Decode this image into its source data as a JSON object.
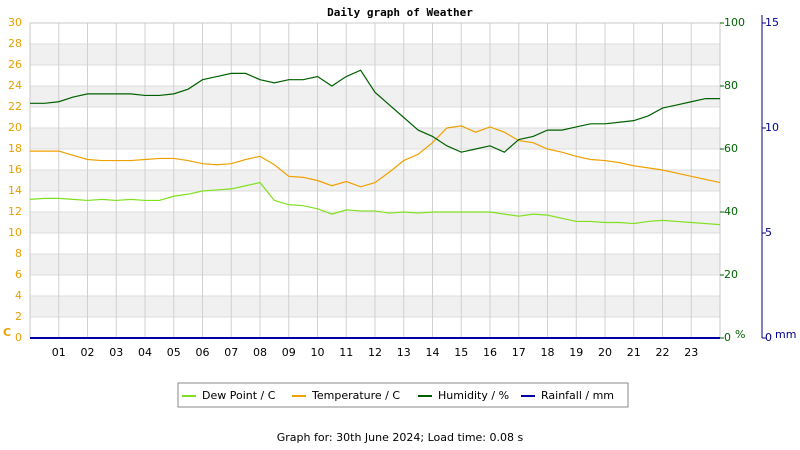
{
  "chart_data": {
    "type": "line",
    "title": "Daily graph of Weather",
    "footer": "Graph for: 30th June 2024; Load time: 0.08 s",
    "y_label": "C",
    "y2_label": "%",
    "y3_label": "mm",
    "x": [
      0,
      0.5,
      1,
      1.5,
      2,
      2.5,
      3,
      3.5,
      4,
      4.5,
      5,
      5.5,
      6,
      6.5,
      7,
      7.5,
      8,
      8.5,
      9,
      9.5,
      10,
      10.5,
      11,
      11.5,
      12,
      12.5,
      13,
      13.5,
      14,
      14.5,
      15,
      15.5,
      16,
      16.5,
      17,
      17.5,
      18,
      18.5,
      19,
      19.5,
      20,
      20.5,
      21,
      21.5,
      22,
      22.5,
      23,
      23.5,
      24
    ],
    "xlim": [
      0,
      24
    ],
    "xticks": [
      {
        "value": 1,
        "label": "01"
      },
      {
        "value": 2,
        "label": "02"
      },
      {
        "value": 3,
        "label": "03"
      },
      {
        "value": 4,
        "label": "04"
      },
      {
        "value": 5,
        "label": "05"
      },
      {
        "value": 6,
        "label": "06"
      },
      {
        "value": 7,
        "label": "07"
      },
      {
        "value": 8,
        "label": "08"
      },
      {
        "value": 9,
        "label": "09"
      },
      {
        "value": 10,
        "label": "10"
      },
      {
        "value": 11,
        "label": "11"
      },
      {
        "value": 12,
        "label": "12"
      },
      {
        "value": 13,
        "label": "13"
      },
      {
        "value": 14,
        "label": "14"
      },
      {
        "value": 15,
        "label": "15"
      },
      {
        "value": 16,
        "label": "16"
      },
      {
        "value": 17,
        "label": "17"
      },
      {
        "value": 18,
        "label": "18"
      },
      {
        "value": 19,
        "label": "19"
      },
      {
        "value": 20,
        "label": "20"
      },
      {
        "value": 21,
        "label": "21"
      },
      {
        "value": 22,
        "label": "22"
      },
      {
        "value": 23,
        "label": "23"
      }
    ],
    "ylim": [
      0,
      30
    ],
    "yticks": [
      0,
      2,
      4,
      6,
      8,
      10,
      12,
      14,
      16,
      18,
      20,
      22,
      24,
      26,
      28,
      30
    ],
    "y2lim": [
      0,
      100
    ],
    "y2ticks": [
      0,
      20,
      40,
      60,
      80,
      100
    ],
    "y3lim": [
      0,
      15
    ],
    "y3ticks": [
      0,
      5,
      10,
      15
    ],
    "grid": true,
    "axis_colors": {
      "y": "#e8a000",
      "y2": "#006400",
      "y3": "#00008b"
    },
    "series": [
      {
        "name": "Dew Point / C",
        "color": "#80e020",
        "axis": "y",
        "values": [
          13.2,
          13.3,
          13.3,
          13.2,
          13.1,
          13.2,
          13.1,
          13.2,
          13.1,
          13.1,
          13.5,
          13.7,
          14.0,
          14.1,
          14.2,
          14.5,
          14.8,
          13.1,
          12.7,
          12.6,
          12.3,
          11.8,
          12.2,
          12.1,
          12.1,
          11.9,
          12.0,
          11.9,
          12.0,
          12.0,
          12.0,
          12.0,
          12.0,
          11.8,
          11.6,
          11.8,
          11.7,
          11.4,
          11.1,
          11.1,
          11.0,
          11.0,
          10.9,
          11.1,
          11.2,
          11.1,
          11.0,
          10.9,
          10.8
        ]
      },
      {
        "name": "Temperature / C",
        "color": "#f0a000",
        "axis": "y",
        "values": [
          17.8,
          17.8,
          17.8,
          17.4,
          17.0,
          16.9,
          16.9,
          16.9,
          17.0,
          17.1,
          17.1,
          16.9,
          16.6,
          16.5,
          16.6,
          17.0,
          17.3,
          16.5,
          15.4,
          15.3,
          15.0,
          14.5,
          14.9,
          14.4,
          14.8,
          15.8,
          16.9,
          17.5,
          18.6,
          20.0,
          20.2,
          19.6,
          20.1,
          19.6,
          18.8,
          18.6,
          18.0,
          17.7,
          17.3,
          17.0,
          16.9,
          16.7,
          16.4,
          16.2,
          16.0,
          15.7,
          15.4,
          15.1,
          14.8
        ]
      },
      {
        "name": "Humidity / %",
        "color": "#006000",
        "axis": "y2",
        "values": [
          74.5,
          74.5,
          75,
          76.5,
          77.5,
          77.5,
          77.5,
          77.5,
          77,
          77,
          77.5,
          79,
          82,
          83,
          84,
          84,
          82,
          81,
          82,
          82,
          83,
          80,
          83,
          85,
          78,
          74,
          70,
          66,
          64,
          61,
          59,
          60,
          61,
          59,
          63,
          64,
          66,
          66,
          67,
          68,
          68,
          68.5,
          69,
          70.5,
          73,
          74,
          75,
          76,
          76
        ]
      },
      {
        "name": "Rainfall / mm",
        "color": "#0000a0",
        "axis": "y3",
        "values": [
          0,
          0,
          0,
          0,
          0,
          0,
          0,
          0,
          0,
          0,
          0,
          0,
          0,
          0,
          0,
          0,
          0,
          0,
          0,
          0,
          0,
          0,
          0,
          0,
          0,
          0,
          0,
          0,
          0,
          0,
          0,
          0,
          0,
          0,
          0,
          0,
          0,
          0,
          0,
          0,
          0,
          0,
          0,
          0,
          0,
          0,
          0,
          0,
          0
        ]
      }
    ]
  }
}
